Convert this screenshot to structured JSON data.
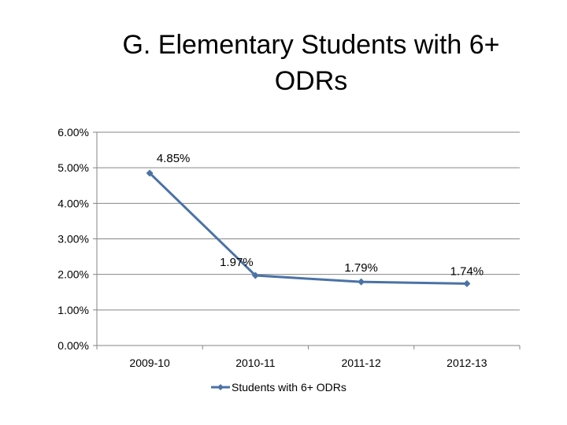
{
  "chart_data": {
    "type": "line",
    "title": "G. Elementary Students with 6+ ODRs",
    "categories": [
      "2009-10",
      "2010-11",
      "2011-12",
      "2012-13"
    ],
    "series": [
      {
        "name": "Students with 6+ ODRs",
        "values": [
          4.85,
          1.97,
          1.79,
          1.74
        ],
        "labels": [
          "4.85%",
          "1.97%",
          "1.79%",
          "1.74%"
        ],
        "color": "#4a72a6"
      }
    ],
    "y_ticks": [
      "0.00%",
      "1.00%",
      "2.00%",
      "3.00%",
      "4.00%",
      "5.00%",
      "6.00%"
    ],
    "ylim": [
      0,
      6
    ],
    "xlabel": "",
    "ylabel": "",
    "grid": true,
    "legend_position": "bottom",
    "gridline_color": "#868686"
  }
}
